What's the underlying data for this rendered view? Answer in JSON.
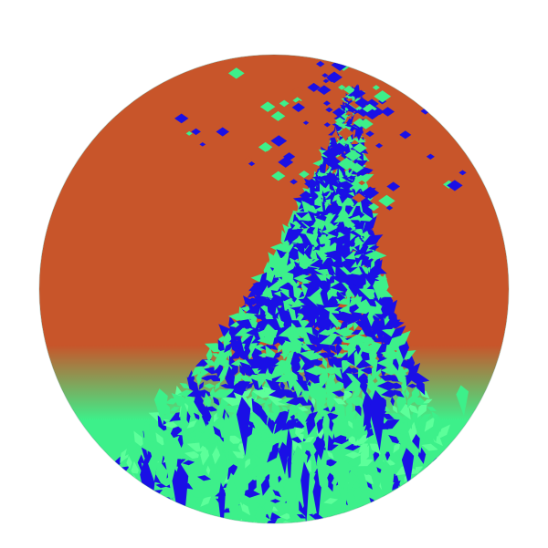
{
  "scene": {
    "background": "#ffffff",
    "object": "patterned-sphere",
    "colors": {
      "orange": "#c8552a",
      "blue": "#1a10e6",
      "green": "#3df08a",
      "light_green": "#5cff9a"
    }
  }
}
